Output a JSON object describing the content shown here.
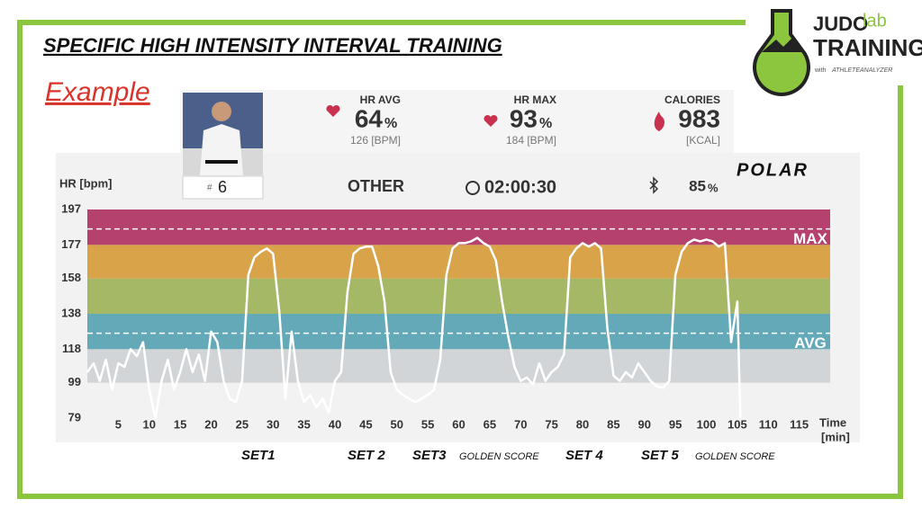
{
  "slide": {
    "title": "SPECIFIC HIGH INTENSITY INTERVAL TRAINING",
    "subtitle": "Example",
    "logo": {
      "word1": "JUDO",
      "word2": "lab",
      "word3": "TRAINING",
      "with": "with",
      "partner": "ATHLETEANALYZER"
    }
  },
  "stats": {
    "hr_avg_label": "HR AVG",
    "hr_avg": 64,
    "hr_avg_unit": "%",
    "hr_avg_bpm": "126 [BPM]",
    "hr_max_label": "HR MAX",
    "hr_max": 93,
    "hr_max_unit": "%",
    "hr_max_bpm": "184 [BPM]",
    "calories_label": "CALORIES",
    "calories": 983,
    "calories_unit": "[KCAL]",
    "sport": "OTHER",
    "duration": "02:00:30",
    "battery": 85,
    "battery_unit": "%",
    "brand": "POLAR",
    "athlete_hash": "#",
    "athlete_number": 6
  },
  "chart_data": {
    "type": "line",
    "y_label": "HR [bpm]",
    "x_label": "Time",
    "x_unit": "[min]",
    "color": "#ffffff",
    "xlim": [
      0,
      120
    ],
    "ylim": [
      79,
      197
    ],
    "xticks": [
      5,
      10,
      15,
      20,
      25,
      30,
      35,
      40,
      45,
      50,
      55,
      60,
      65,
      70,
      75,
      80,
      85,
      90,
      95,
      100,
      105,
      110,
      115
    ],
    "yticks": [
      79,
      99,
      118,
      138,
      158,
      177,
      197
    ],
    "zones": [
      {
        "from": 99,
        "to": 118,
        "color": "#d2d5d8"
      },
      {
        "from": 118,
        "to": 138,
        "color": "#63a9b8"
      },
      {
        "from": 138,
        "to": 158,
        "color": "#a5b866"
      },
      {
        "from": 158,
        "to": 177,
        "color": "#d9a449"
      },
      {
        "from": 177,
        "to": 197,
        "color": "#b5416f"
      }
    ],
    "reference_lines": [
      {
        "value": 186,
        "label": "MAX"
      },
      {
        "value": 127,
        "label": "AVG"
      }
    ],
    "x": [
      0,
      1,
      2,
      3,
      4,
      5,
      6,
      7,
      8,
      9,
      10,
      11,
      12,
      13,
      14,
      15,
      16,
      17,
      18,
      19,
      20,
      21,
      22,
      23,
      24,
      25,
      26,
      27,
      28,
      29,
      30,
      31,
      32,
      33,
      34,
      35,
      36,
      37,
      38,
      39,
      40,
      41,
      42,
      43,
      44,
      45,
      46,
      47,
      48,
      49,
      50,
      51,
      52,
      53,
      54,
      55,
      56,
      57,
      58,
      59,
      60,
      61,
      62,
      63,
      64,
      65,
      66,
      67,
      68,
      69,
      70,
      71,
      72,
      73,
      74,
      75,
      76,
      77,
      78,
      79,
      80,
      81,
      82,
      83,
      84,
      85,
      86,
      87,
      88,
      89,
      90,
      91,
      92,
      93,
      94,
      95,
      96,
      97,
      98,
      99,
      100,
      101,
      102,
      103,
      104,
      105,
      105.5
    ],
    "values": [
      105,
      110,
      100,
      112,
      95,
      110,
      108,
      118,
      114,
      122,
      95,
      79,
      100,
      112,
      95,
      105,
      118,
      105,
      115,
      100,
      128,
      122,
      100,
      90,
      88,
      100,
      160,
      170,
      173,
      175,
      172,
      140,
      90,
      128,
      100,
      88,
      92,
      85,
      90,
      82,
      100,
      105,
      150,
      172,
      175,
      176,
      176,
      165,
      145,
      105,
      95,
      92,
      90,
      88,
      90,
      92,
      95,
      112,
      160,
      175,
      178,
      178,
      179,
      181,
      178,
      176,
      168,
      145,
      125,
      108,
      100,
      102,
      98,
      110,
      100,
      105,
      108,
      115,
      170,
      175,
      178,
      176,
      178,
      175,
      130,
      103,
      100,
      105,
      102,
      110,
      105,
      100,
      97,
      96,
      100,
      160,
      173,
      178,
      180,
      179,
      180,
      179,
      176,
      178,
      122,
      145,
      79
    ],
    "annotations": [
      {
        "label": "SET1"
      },
      {
        "label": "SET 2"
      },
      {
        "label": "SET3",
        "note": "GOLDEN SCORE"
      },
      {
        "label": "SET 4"
      },
      {
        "label": "SET 5",
        "note": "GOLDEN SCORE"
      }
    ]
  }
}
